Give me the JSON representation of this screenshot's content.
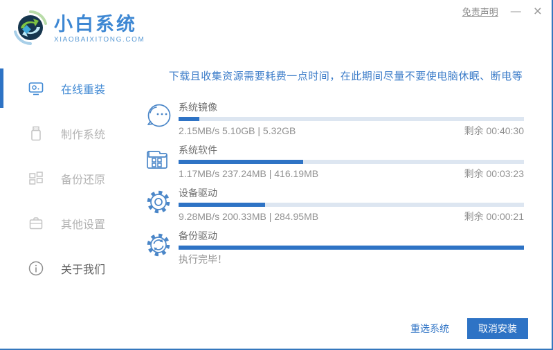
{
  "window": {
    "title": "小白系统",
    "subtitle": "XIAOBAIXITONG.COM",
    "disclaimer": "免责声明",
    "minimize": "—",
    "close": "×"
  },
  "sidebar": {
    "items": [
      {
        "label": "在线重装",
        "icon": "monitor-icon",
        "active": true
      },
      {
        "label": "制作系统",
        "icon": "usb-icon",
        "active": false
      },
      {
        "label": "备份还原",
        "icon": "grid-icon",
        "active": false
      },
      {
        "label": "其他设置",
        "icon": "briefcase-icon",
        "active": false
      },
      {
        "label": "关于我们",
        "icon": "info-icon",
        "active": false
      }
    ]
  },
  "main": {
    "notice": "下载且收集资源需要耗费一点时间，在此期间尽量不要使电脑休眠、断电等",
    "tasks": [
      {
        "name": "系统镜像",
        "icon": "mascot-face-icon",
        "progress_percent": 6,
        "stats": "2.15MB/s 5.10GB | 5.32GB",
        "remaining": "剩余 00:40:30"
      },
      {
        "name": "系统软件",
        "icon": "folder-icon",
        "progress_percent": 36,
        "stats": "1.17MB/s 237.24MB | 416.19MB",
        "remaining": "剩余 00:03:23"
      },
      {
        "name": "设备驱动",
        "icon": "gear-icon",
        "progress_percent": 25,
        "stats": "9.28MB/s 200.33MB | 284.95MB",
        "remaining": "剩余 00:00:21"
      },
      {
        "name": "备份驱动",
        "icon": "gear-sync-icon",
        "progress_percent": 100,
        "stats": "执行完毕！",
        "remaining": ""
      }
    ]
  },
  "footer": {
    "reselect_label": "重选系统",
    "cancel_label": "取消安装"
  },
  "colors": {
    "accent": "#2e73c5",
    "track": "#dde6f1",
    "notice_text": "#3d7dc9",
    "title_text": "#3d87d3",
    "window_border": "#3477bd"
  }
}
